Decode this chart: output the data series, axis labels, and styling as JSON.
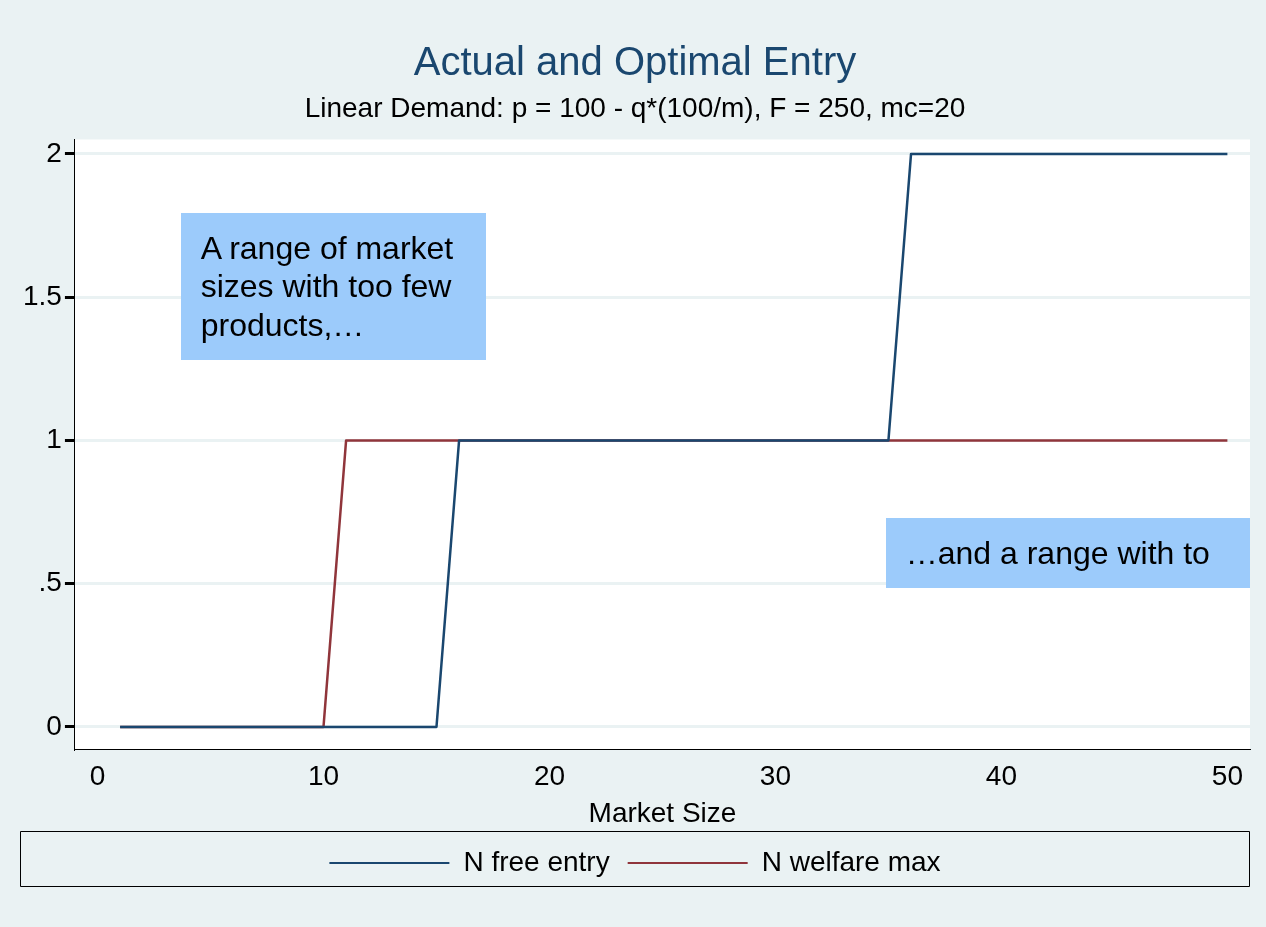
{
  "chart_data": {
    "type": "line",
    "title": "Actual and Optimal Entry",
    "subtitle": "Linear Demand: p = 100 - q*(100/m), F = 250, mc=20",
    "xlabel": "Market Size",
    "series": [
      {
        "name": "N free entry",
        "color": "#1a476f",
        "x": [
          1,
          15,
          16,
          35,
          36,
          50
        ],
        "values": [
          0,
          0,
          1,
          1,
          2,
          2
        ]
      },
      {
        "name": "N welfare max",
        "color": "#90353b",
        "x": [
          1,
          10,
          11,
          50
        ],
        "values": [
          0,
          0,
          1,
          1
        ]
      }
    ],
    "xlim": [
      -1,
      51
    ],
    "xticks": [
      0,
      10,
      20,
      30,
      40,
      50
    ],
    "ylim": [
      -0.08,
      2.05
    ],
    "yticks": [
      0,
      {
        "value": 0.5,
        "label": ".5"
      },
      1,
      {
        "value": 1.5,
        "label": "1.5"
      },
      2
    ],
    "grid": "y",
    "legend": "bottom",
    "marker": "none",
    "line_style": "solid",
    "annotations": [
      "A range of market sizes with too few products,…",
      "…and a range with to"
    ]
  }
}
